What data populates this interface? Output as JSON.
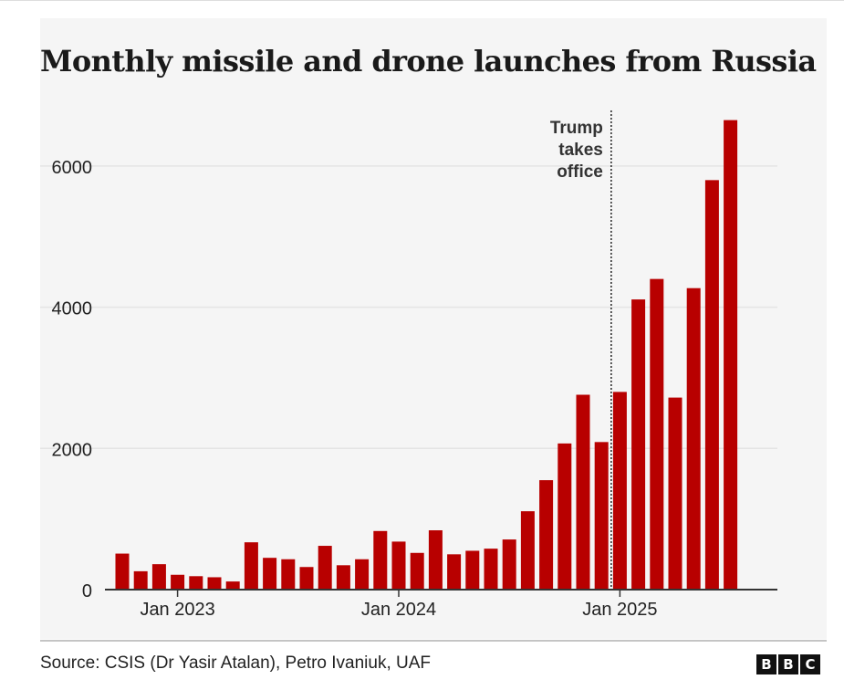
{
  "title": "Monthly missile and drone launches from Russia",
  "source": "Source: CSIS (Dr Yasir Atalan), Petro Ivaniuk, UAF",
  "logo": [
    "B",
    "B",
    "C"
  ],
  "colors": {
    "bar": "#b80000",
    "text": "#222222",
    "grid": "#e4e4e4",
    "axis": "#333333"
  },
  "chart_data": {
    "type": "bar",
    "title": "Monthly missile and drone launches from Russia",
    "xlabel": "",
    "ylabel": "",
    "ylim": [
      0,
      6800
    ],
    "grid": true,
    "y_ticks": [
      0,
      2000,
      4000,
      6000
    ],
    "y_tick_labels": [
      "0",
      "2000",
      "4000",
      "6000"
    ],
    "x_ticks": [
      {
        "label": "Jan 2023",
        "month": "2023-01"
      },
      {
        "label": "Jan 2024",
        "month": "2024-01"
      },
      {
        "label": "Jan 2025",
        "month": "2025-01"
      }
    ],
    "categories": [
      "2022-10",
      "2022-11",
      "2022-12",
      "2023-01",
      "2023-02",
      "2023-03",
      "2023-04",
      "2023-05",
      "2023-06",
      "2023-07",
      "2023-08",
      "2023-09",
      "2023-10",
      "2023-11",
      "2023-12",
      "2024-01",
      "2024-02",
      "2024-03",
      "2024-04",
      "2024-05",
      "2024-06",
      "2024-07",
      "2024-08",
      "2024-09",
      "2024-10",
      "2024-11",
      "2024-12",
      "2025-01",
      "2025-02",
      "2025-03",
      "2025-04",
      "2025-05",
      "2025-06",
      "2025-07"
    ],
    "values": [
      510,
      260,
      360,
      210,
      190,
      175,
      115,
      670,
      450,
      430,
      320,
      620,
      345,
      430,
      830,
      680,
      520,
      840,
      500,
      550,
      580,
      710,
      1110,
      1550,
      2070,
      2760,
      2090,
      2800,
      4110,
      4400,
      2720,
      4270,
      5800,
      6650
    ],
    "annotation": {
      "lines": [
        "Trump",
        "takes",
        "office"
      ],
      "month": "2025-01"
    }
  }
}
